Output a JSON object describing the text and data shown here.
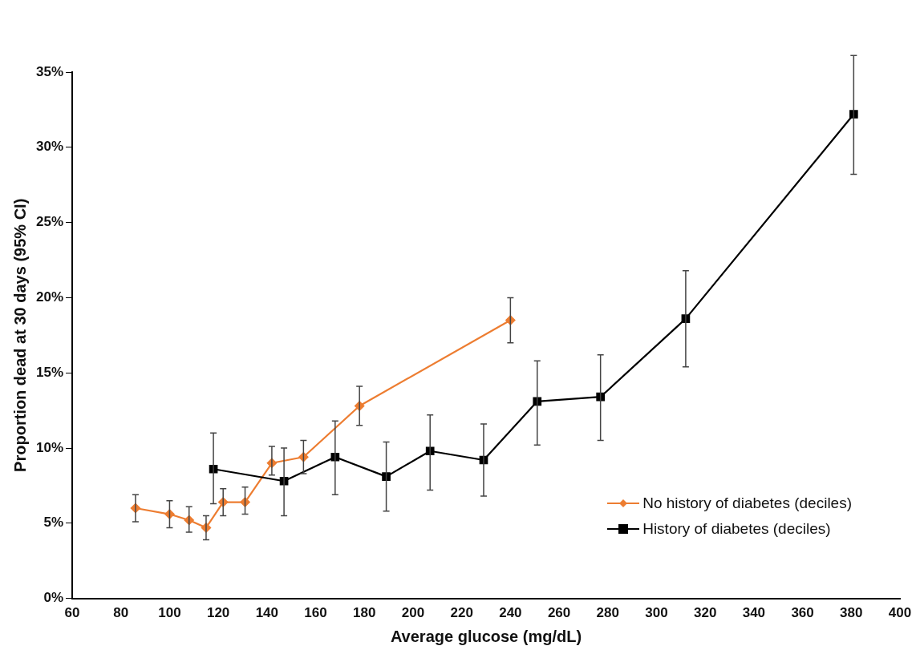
{
  "chart_data": {
    "type": "line",
    "xlabel": "Average glucose (mg/dL)",
    "ylabel": "Proportion dead at 30 days (95% CI)",
    "xlim": [
      60,
      400
    ],
    "xticks": [
      60,
      80,
      100,
      120,
      140,
      160,
      180,
      200,
      220,
      240,
      260,
      280,
      300,
      320,
      340,
      360,
      380,
      400
    ],
    "ylim": [
      0,
      35
    ],
    "yticks": [
      {
        "value": 0,
        "label": "0%"
      },
      {
        "value": 5,
        "label": "5%"
      },
      {
        "value": 10,
        "label": "10%"
      },
      {
        "value": 15,
        "label": "15%"
      },
      {
        "value": 20,
        "label": "20%"
      },
      {
        "value": 25,
        "label": "25%"
      },
      {
        "value": 30,
        "label": "30%"
      },
      {
        "value": 35,
        "label": "35%"
      }
    ],
    "legend": "bottom right",
    "grid": false,
    "series": [
      {
        "name": "No history of diabetes (deciles)",
        "color": "#ed7d31",
        "marker": "diamond",
        "x": [
          86,
          100,
          108,
          115,
          122,
          131,
          142,
          155,
          178,
          240
        ],
        "values": [
          6.0,
          5.6,
          5.2,
          4.7,
          6.4,
          6.4,
          9.0,
          9.4,
          12.8,
          18.5
        ],
        "errors": [
          [
            5.1,
            6.9
          ],
          [
            4.7,
            6.5
          ],
          [
            4.4,
            6.1
          ],
          [
            3.9,
            5.5
          ],
          [
            5.5,
            7.3
          ],
          [
            5.6,
            7.4
          ],
          [
            8.2,
            10.1
          ],
          [
            8.3,
            10.5
          ],
          [
            11.5,
            14.1
          ],
          [
            17.0,
            20.0
          ]
        ]
      },
      {
        "name": "History of diabetes (deciles)",
        "color": "#000000",
        "marker": "square",
        "x": [
          118,
          147,
          168,
          189,
          207,
          229,
          251,
          277,
          312,
          381
        ],
        "values": [
          8.6,
          7.8,
          9.4,
          8.1,
          9.8,
          9.2,
          13.1,
          13.4,
          18.6,
          32.2
        ],
        "errors": [
          [
            6.3,
            11.0
          ],
          [
            5.5,
            10.0
          ],
          [
            6.9,
            11.8
          ],
          [
            5.8,
            10.4
          ],
          [
            7.2,
            12.2
          ],
          [
            6.8,
            11.6
          ],
          [
            10.2,
            15.8
          ],
          [
            10.5,
            16.2
          ],
          [
            15.4,
            21.8
          ],
          [
            28.2,
            36.1
          ]
        ]
      }
    ]
  }
}
